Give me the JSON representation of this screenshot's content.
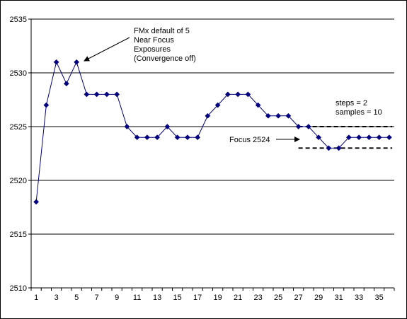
{
  "chart_data": {
    "type": "line",
    "title": "",
    "xlabel": "",
    "ylabel": "",
    "x": [
      1,
      2,
      3,
      4,
      5,
      6,
      7,
      8,
      9,
      10,
      11,
      12,
      13,
      14,
      15,
      16,
      17,
      18,
      19,
      20,
      21,
      22,
      23,
      24,
      25,
      26,
      27,
      28,
      29,
      30,
      31,
      32,
      33,
      34,
      35,
      36
    ],
    "series": [
      {
        "values": [
          2518,
          2527,
          2531,
          2529,
          2531,
          2528,
          2528,
          2528,
          2528,
          2525,
          2524,
          2524,
          2524,
          2525,
          2524,
          2524,
          2524,
          2526,
          2527,
          2528,
          2528,
          2528,
          2527,
          2526,
          2526,
          2526,
          2525,
          2525,
          2524,
          2523,
          2523,
          2524,
          2524,
          2524,
          2524,
          2524
        ]
      }
    ],
    "ylim": [
      2510,
      2535
    ],
    "yticks": [
      2510,
      2515,
      2520,
      2525,
      2530,
      2535
    ],
    "xticks": [
      1,
      3,
      5,
      7,
      9,
      11,
      13,
      15,
      17,
      19,
      21,
      23,
      25,
      27,
      29,
      31,
      33,
      35
    ],
    "grid": "horizontal",
    "colors": {
      "series": "#000080",
      "grid": "#000000"
    },
    "reference_lines": [
      {
        "y": 2525,
        "x_from": 27,
        "x_to": 36,
        "style": "dashed"
      },
      {
        "y": 2523,
        "x_from": 27,
        "x_to": 36,
        "style": "dashed"
      }
    ],
    "annotations": [
      {
        "lines": [
          "FMx default of 5",
          "Near Focus",
          "Exposures",
          "(Convergence off)"
        ],
        "points_to": {
          "x": 5,
          "y": 2531
        }
      },
      {
        "lines": [
          "steps = 2",
          "samples = 10"
        ]
      },
      {
        "lines": [
          "Focus 2524"
        ],
        "points_to": {
          "x": 27,
          "y": 2524
        }
      }
    ]
  }
}
